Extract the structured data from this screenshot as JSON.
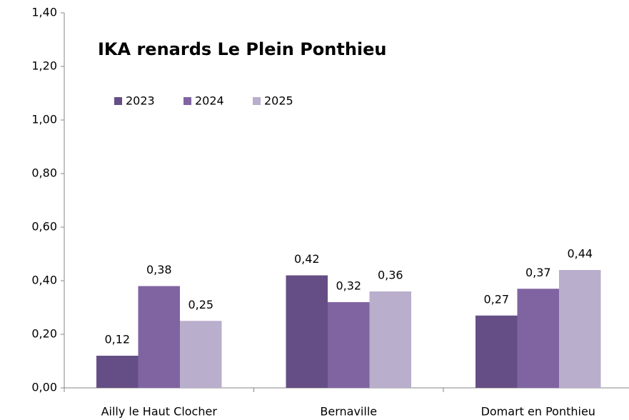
{
  "chart_data": {
    "type": "bar",
    "title": "IKA renards Le Plein Ponthieu",
    "categories": [
      "Ailly le Haut Clocher",
      "Bernaville",
      "Domart en Ponthieu"
    ],
    "series": [
      {
        "name": "2023",
        "color": "#654e85",
        "values": [
          0.12,
          0.42,
          0.27
        ],
        "value_labels": [
          "0,12",
          "0,42",
          "0,27"
        ]
      },
      {
        "name": "2024",
        "color": "#8064a2",
        "values": [
          0.38,
          0.32,
          0.37
        ],
        "value_labels": [
          "0,38",
          "0,32",
          "0,37"
        ]
      },
      {
        "name": "2025",
        "color": "#b9aecb",
        "values": [
          0.25,
          0.36,
          0.44
        ],
        "value_labels": [
          "0,25",
          "0,36",
          "0,44"
        ]
      }
    ],
    "ylim": [
      0,
      1.4
    ],
    "yticks": [
      {
        "value": 0,
        "label": "0,00"
      },
      {
        "value": 0.2,
        "label": "0,20"
      },
      {
        "value": 0.4,
        "label": "0,40"
      },
      {
        "value": 0.6,
        "label": "0,60"
      },
      {
        "value": 0.8,
        "label": "0,80"
      },
      {
        "value": 1.0,
        "label": "1,00"
      },
      {
        "value": 1.2,
        "label": "1,20"
      },
      {
        "value": 1.4,
        "label": "1,40"
      }
    ],
    "legend": "top-left"
  }
}
